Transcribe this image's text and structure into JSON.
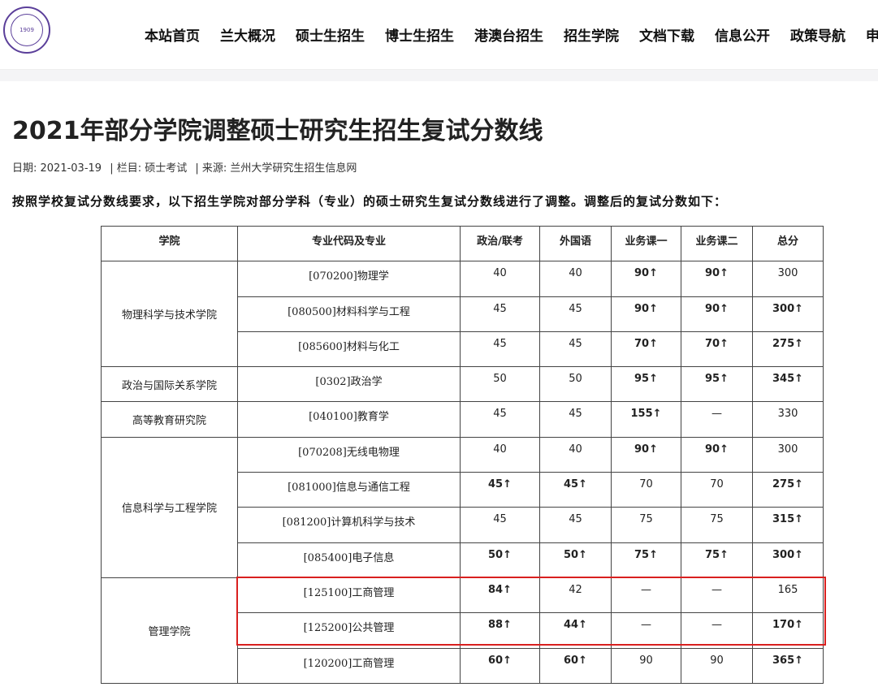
{
  "nav": [
    "本站首页",
    "兰大概况",
    "硕士生招生",
    "博士生招生",
    "港澳台招生",
    "招生学院",
    "文档下载",
    "信息公开",
    "政策导航",
    "申"
  ],
  "logo_text": "LANZHOU UNIVERSITY 1909",
  "title": "2021年部分学院调整硕士研究生招生复试分数线",
  "meta": {
    "date": "日期: 2021-03-19",
    "column": "| 栏目: 硕士考试",
    "source": "| 来源: 兰州大学研究生招生信息网"
  },
  "intro": "按照学校复试分数线要求，以下招生学院对部分学科（专业）的硕士研究生复试分数线进行了调整。调整后的复试分数如下：",
  "table": {
    "headers": [
      "学院",
      "专业代码及专业",
      "政治/联考",
      "外国语",
      "业务课一",
      "业务课二",
      "总分"
    ],
    "groups": [
      {
        "college": "物理科学与技术学院",
        "rows": [
          [
            "[070200]物理学",
            "40",
            "40",
            "90↑",
            "90↑",
            "300"
          ],
          [
            "[080500]材料科学与工程",
            "45",
            "45",
            "90↑",
            "90↑",
            "300↑"
          ],
          [
            "[085600]材料与化工",
            "45",
            "45",
            "70↑",
            "70↑",
            "275↑"
          ]
        ]
      },
      {
        "college": "政治与国际关系学院",
        "rows": [
          [
            "[0302]政治学",
            "50",
            "50",
            "95↑",
            "95↑",
            "345↑"
          ]
        ]
      },
      {
        "college": "高等教育研究院",
        "rows": [
          [
            "[040100]教育学",
            "45",
            "45",
            "155↑",
            "—",
            "330"
          ]
        ]
      },
      {
        "college": "信息科学与工程学院",
        "rows": [
          [
            "[070208]无线电物理",
            "40",
            "40",
            "90↑",
            "90↑",
            "300"
          ],
          [
            "[081000]信息与通信工程",
            "45↑",
            "45↑",
            "70",
            "70",
            "275↑"
          ],
          [
            "[081200]计算机科学与技术",
            "45",
            "45",
            "75",
            "75",
            "315↑"
          ],
          [
            "[085400]电子信息",
            "50↑",
            "50↑",
            "75↑",
            "75↑",
            "300↑"
          ]
        ]
      },
      {
        "college": "管理学院",
        "rows": [
          [
            "[125100]工商管理",
            "84↑",
            "42",
            "—",
            "—",
            "165"
          ],
          [
            "[125200]公共管理",
            "88↑",
            "44↑",
            "—",
            "—",
            "170↑"
          ],
          [
            "[120200]工商管理",
            "60↑",
            "60↑",
            "90",
            "90",
            "365↑"
          ]
        ]
      }
    ]
  },
  "highlight_color": "#d9201f"
}
